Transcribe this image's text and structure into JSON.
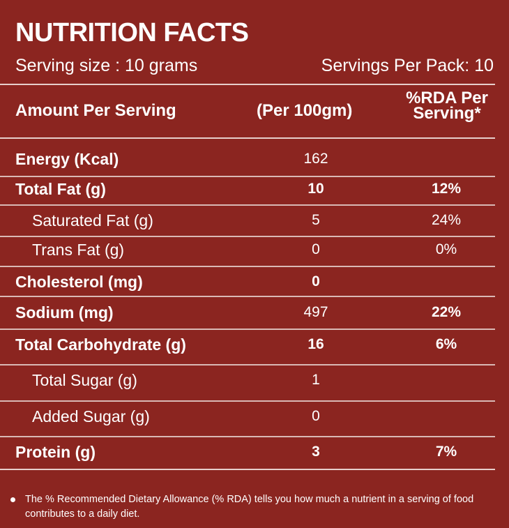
{
  "title": "NUTRITION FACTS",
  "serving_size": "Serving size : 10 grams",
  "servings_per_pack": "Servings Per Pack: 10",
  "header": {
    "amount": "Amount Per Serving",
    "per100": "(Per 100gm)",
    "rda_line1": "%RDA Per",
    "rda_line2": "Serving*"
  },
  "rows": [
    {
      "label": "Energy (Kcal)",
      "value": "162",
      "rda": ""
    },
    {
      "label": "Total Fat (g)",
      "value": "10",
      "rda": "12%"
    },
    {
      "label": "Saturated Fat (g)",
      "value": "5",
      "rda": "24%"
    },
    {
      "label": "Trans Fat (g)",
      "value": "0",
      "rda": "0%"
    },
    {
      "label": "Cholesterol (mg)",
      "value": "0",
      "rda": ""
    },
    {
      "label": "Sodium  (mg)",
      "value": "497",
      "rda": "22%"
    },
    {
      "label": "Total Carbohydrate (g)",
      "value": "16",
      "rda": "6%"
    },
    {
      "label": "Total Sugar (g)",
      "value": "1",
      "rda": ""
    },
    {
      "label": "Added Sugar (g)",
      "value": "0",
      "rda": ""
    },
    {
      "label": "Protein (g)",
      "value": "3",
      "rda": "7%"
    }
  ],
  "footnote": "The % Recommended Dietary Allowance (% RDA) tells you how much a nutrient in a serving of food contributes to a daily diet.",
  "colors": {
    "background": "#8b2520",
    "text": "#ffffff",
    "rule": "#e7cfcc"
  }
}
